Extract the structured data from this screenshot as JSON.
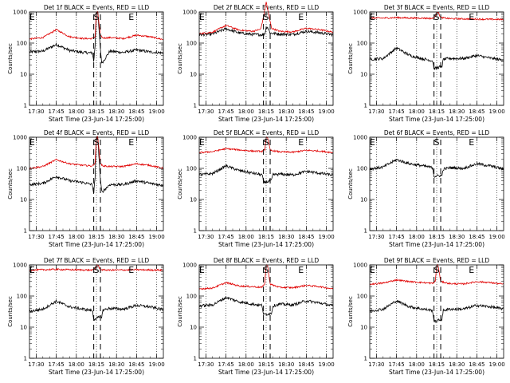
{
  "chart_data": {
    "type": "line",
    "common": {
      "xlabel": "Start Time (23-Jun-14 17:25:00)",
      "ylabel": "Counts/sec",
      "x_tick_labels": [
        "17:30",
        "17:45",
        "18:00",
        "18:15",
        "18:30",
        "18:45",
        "19:00"
      ],
      "x_tick_minutes": [
        30,
        45,
        60,
        75,
        90,
        105,
        120
      ],
      "xlim_minutes_after_1700": [
        25,
        125
      ],
      "y_scale": "log",
      "ylim": [
        1,
        1000
      ],
      "y_tick_labels": [
        "1",
        "10",
        "100",
        "1000"
      ],
      "y_tick_values": [
        1,
        10,
        100,
        1000
      ],
      "vertical_dotted_minutes": [
        30,
        45,
        60,
        75,
        90,
        105,
        120
      ],
      "region_markers": [
        {
          "label": "E",
          "minute": 27
        },
        {
          "label": "S",
          "minute": 75
        },
        {
          "label": "E",
          "minute": 101
        }
      ],
      "dashed_lines_minutes": [
        73,
        78
      ],
      "series_colors": {
        "Events": "#000000",
        "LLD": "#e00000"
      }
    },
    "panels": [
      {
        "title": "Det 1f BLACK = Events, RED = LLD",
        "events": {
          "minutes": [
            25,
            35,
            45,
            55,
            65,
            72,
            73,
            74,
            75,
            76,
            78,
            79,
            85,
            95,
            105,
            115,
            125
          ],
          "values": [
            52,
            55,
            90,
            58,
            50,
            48,
            25,
            80,
            1000,
            1000,
            60,
            22,
            55,
            50,
            60,
            52,
            48
          ]
        },
        "lld": {
          "minutes": [
            25,
            35,
            45,
            55,
            65,
            72,
            74,
            75,
            76,
            78,
            80,
            85,
            95,
            105,
            115,
            125
          ],
          "values": [
            135,
            150,
            270,
            160,
            140,
            140,
            160,
            1000,
            1000,
            170,
            145,
            150,
            140,
            180,
            160,
            130
          ]
        }
      },
      {
        "title": "Det 2f BLACK = Events, RED = LLD",
        "events": {
          "minutes": [
            25,
            35,
            45,
            55,
            65,
            72,
            74,
            75,
            76,
            78,
            85,
            95,
            105,
            115,
            125
          ],
          "values": [
            185,
            195,
            290,
            210,
            190,
            185,
            200,
            320,
            330,
            210,
            195,
            190,
            240,
            215,
            185
          ]
        },
        "lld": {
          "minutes": [
            25,
            35,
            45,
            55,
            65,
            71,
            73,
            75,
            77,
            79,
            85,
            95,
            105,
            115,
            125
          ],
          "values": [
            200,
            225,
            370,
            260,
            240,
            280,
            700,
            2100,
            800,
            300,
            240,
            230,
            300,
            270,
            225
          ]
        }
      },
      {
        "title": "Det 3f BLACK = Events, RED = LLD",
        "events": {
          "minutes": [
            25,
            35,
            45,
            55,
            65,
            72,
            73,
            79,
            80,
            85,
            95,
            105,
            115,
            125
          ],
          "values": [
            30,
            32,
            70,
            40,
            31,
            27,
            15,
            18,
            30,
            32,
            32,
            40,
            33,
            28
          ]
        },
        "lld": {
          "minutes": [
            25,
            35,
            45,
            55,
            65,
            72,
            74,
            75,
            76,
            78,
            85,
            95,
            105,
            115,
            125
          ],
          "values": [
            640,
            635,
            660,
            640,
            635,
            620,
            700,
            1000,
            1000,
            660,
            610,
            600,
            590,
            580,
            575
          ]
        }
      },
      {
        "title": "Det 4f BLACK = Events, RED = LLD",
        "events": {
          "minutes": [
            25,
            35,
            45,
            55,
            65,
            72,
            73,
            74,
            75,
            76,
            78,
            79,
            85,
            95,
            105,
            115,
            125
          ],
          "values": [
            30,
            33,
            55,
            40,
            35,
            30,
            15,
            50,
            1000,
            1000,
            40,
            17,
            30,
            30,
            40,
            33,
            28
          ]
        },
        "lld": {
          "minutes": [
            25,
            35,
            45,
            55,
            65,
            72,
            74,
            75,
            76,
            78,
            80,
            85,
            95,
            105,
            115,
            125
          ],
          "values": [
            100,
            115,
            190,
            140,
            125,
            120,
            150,
            1000,
            1000,
            140,
            120,
            115,
            115,
            140,
            125,
            100
          ]
        }
      },
      {
        "title": "Det 5f BLACK = Events, RED = LLD",
        "events": {
          "minutes": [
            25,
            35,
            45,
            55,
            65,
            72,
            73,
            79,
            80,
            85,
            95,
            105,
            115,
            125
          ],
          "values": [
            62,
            68,
            120,
            85,
            70,
            62,
            35,
            40,
            62,
            65,
            62,
            80,
            70,
            60
          ]
        },
        "lld": {
          "minutes": [
            25,
            35,
            45,
            55,
            65,
            72,
            74,
            75,
            76,
            78,
            85,
            95,
            105,
            115,
            125
          ],
          "values": [
            320,
            345,
            430,
            390,
            360,
            350,
            400,
            1000,
            1000,
            380,
            340,
            330,
            380,
            360,
            320
          ]
        }
      },
      {
        "title": "Det 6f BLACK = Events, RED = LLD",
        "events": {
          "minutes": [
            25,
            35,
            45,
            55,
            65,
            72,
            73,
            79,
            80,
            85,
            95,
            105,
            115,
            125
          ],
          "values": [
            95,
            110,
            190,
            140,
            120,
            105,
            55,
            60,
            95,
            105,
            100,
            140,
            120,
            95
          ]
        },
        "lld": {
          "minutes": [],
          "values": []
        }
      },
      {
        "title": "Det 7f BLACK = Events, RED = LLD",
        "events": {
          "minutes": [
            25,
            35,
            45,
            55,
            65,
            72,
            73,
            79,
            80,
            85,
            95,
            105,
            115,
            125
          ],
          "values": [
            32,
            38,
            68,
            45,
            38,
            34,
            18,
            22,
            36,
            40,
            38,
            50,
            45,
            36
          ]
        },
        "lld": {
          "minutes": [
            25,
            35,
            45,
            55,
            65,
            72,
            74,
            75,
            76,
            78,
            85,
            95,
            105,
            115,
            125
          ],
          "values": [
            680,
            700,
            720,
            700,
            690,
            680,
            720,
            1000,
            1000,
            700,
            680,
            690,
            700,
            690,
            680
          ]
        }
      },
      {
        "title": "Det 8f BLACK = Events, RED = LLD",
        "events": {
          "minutes": [
            25,
            35,
            45,
            55,
            65,
            72,
            73,
            79,
            80,
            85,
            95,
            105,
            115,
            125
          ],
          "values": [
            48,
            52,
            90,
            65,
            55,
            50,
            25,
            28,
            48,
            55,
            52,
            70,
            60,
            48
          ]
        },
        "lld": {
          "minutes": [
            25,
            35,
            45,
            55,
            65,
            72,
            74,
            75,
            76,
            78,
            85,
            95,
            105,
            115,
            125
          ],
          "values": [
            170,
            180,
            270,
            210,
            200,
            190,
            260,
            1000,
            1000,
            240,
            190,
            185,
            220,
            200,
            170
          ]
        }
      },
      {
        "title": "Det 9f BLACK = Events, RED = LLD",
        "events": {
          "minutes": [
            25,
            35,
            45,
            55,
            65,
            72,
            73,
            79,
            80,
            85,
            95,
            105,
            115,
            125
          ],
          "values": [
            33,
            38,
            70,
            45,
            38,
            34,
            15,
            18,
            35,
            38,
            38,
            50,
            45,
            38
          ]
        },
        "lld": {
          "minutes": [
            25,
            35,
            45,
            55,
            65,
            72,
            74,
            75,
            76,
            78,
            85,
            95,
            105,
            115,
            125
          ],
          "values": [
            240,
            260,
            330,
            290,
            270,
            255,
            300,
            1000,
            1000,
            290,
            250,
            245,
            290,
            270,
            240
          ]
        }
      }
    ]
  }
}
